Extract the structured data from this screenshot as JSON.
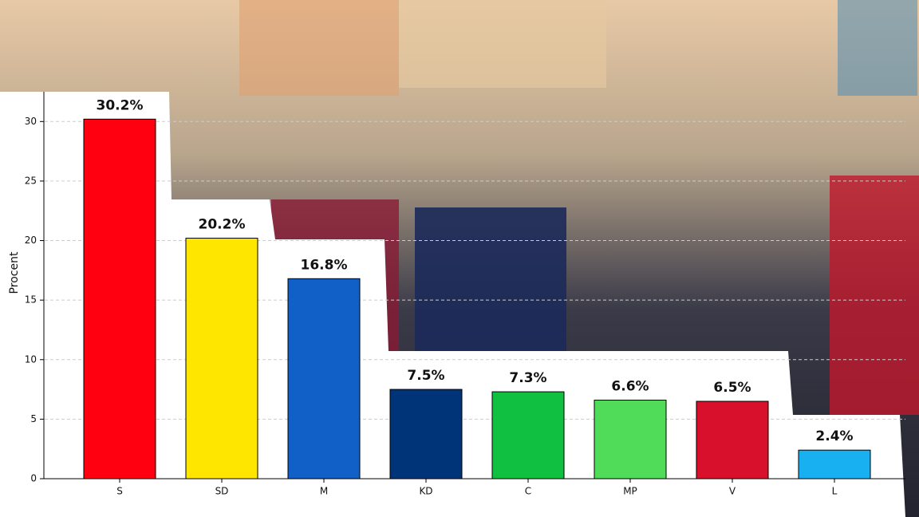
{
  "chart_data": {
    "type": "bar",
    "ylabel": "Procent",
    "categories": [
      "S",
      "SD",
      "M",
      "KD",
      "C",
      "MP",
      "V",
      "L"
    ],
    "values": [
      30.2,
      20.2,
      16.8,
      7.5,
      7.3,
      6.6,
      6.5,
      2.4
    ],
    "value_labels": [
      "30.2%",
      "20.2%",
      "16.8%",
      "7.5%",
      "7.3%",
      "6.6%",
      "6.5%",
      "2.4%"
    ],
    "colors": [
      "#ff0010",
      "#ffe600",
      "#1060c8",
      "#003478",
      "#10c040",
      "#50dc58",
      "#d8102c",
      "#18b0f0"
    ],
    "ylim": [
      0,
      32.5
    ],
    "yticks": [
      0,
      5,
      10,
      15,
      20,
      25,
      30
    ],
    "grid": true
  }
}
